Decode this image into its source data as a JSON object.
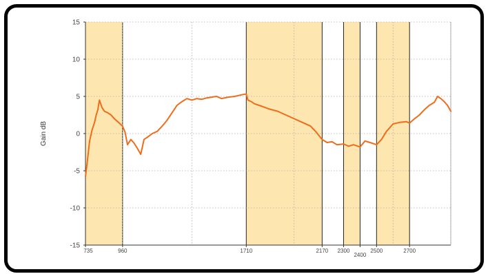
{
  "chart_data": {
    "type": "line",
    "title": "",
    "xlabel": "",
    "ylabel": "Gain dB",
    "xlim": [
      735,
      2950
    ],
    "ylim": [
      -15,
      15
    ],
    "grid": true,
    "legend": "none",
    "y_ticks": [
      -15,
      -10,
      -5,
      0,
      5,
      10,
      15
    ],
    "x_ticks": [
      735,
      960,
      1710,
      2170,
      2300,
      2400,
      2500,
      2700
    ],
    "x_tick_labels": [
      "735",
      "960",
      "1710",
      "2170",
      "2300",
      "2400",
      "2500",
      "2700"
    ],
    "highlight_bands": [
      {
        "from": 735,
        "to": 960
      },
      {
        "from": 1710,
        "to": 2170
      },
      {
        "from": 2300,
        "to": 2400
      },
      {
        "from": 2500,
        "to": 2700
      }
    ],
    "colors": {
      "line": "#ef6c1a",
      "band": "#fde6b0",
      "band_edge": "#222222",
      "grid": "#aaaaaa",
      "frame": "#000000"
    },
    "series": [
      {
        "x": [
          735,
          745,
          760,
          775,
          790,
          800,
          810,
          820,
          835,
          850,
          870,
          890,
          910,
          935,
          960,
          975,
          990,
          1010,
          1030,
          1050,
          1070,
          1090,
          1110,
          1140,
          1170,
          1200,
          1230,
          1260,
          1290,
          1320,
          1350,
          1380,
          1410,
          1440,
          1470,
          1500,
          1530,
          1560,
          1600,
          1640,
          1680,
          1700,
          1710,
          1720,
          1740,
          1760,
          1800,
          1850,
          1900,
          1950,
          2000,
          2050,
          2100,
          2130,
          2170,
          2200,
          2230,
          2260,
          2300,
          2330,
          2360,
          2400,
          2430,
          2460,
          2500,
          2530,
          2560,
          2600,
          2640,
          2680,
          2700,
          2730,
          2760,
          2790,
          2820,
          2850,
          2870,
          2890,
          2910,
          2930,
          2950
        ],
        "y": [
          -5.8,
          -4.0,
          -1.0,
          0.5,
          1.5,
          2.5,
          3.2,
          4.5,
          3.5,
          3.0,
          2.8,
          2.5,
          2.0,
          1.5,
          1.0,
          0.2,
          -1.5,
          -0.8,
          -1.3,
          -2.0,
          -2.8,
          -0.8,
          -0.5,
          0.0,
          0.3,
          1.0,
          1.8,
          2.8,
          3.8,
          4.3,
          4.7,
          4.5,
          4.7,
          4.6,
          4.8,
          4.9,
          5.0,
          4.7,
          4.9,
          5.0,
          5.2,
          5.3,
          5.3,
          4.5,
          4.3,
          4.0,
          3.7,
          3.3,
          3.0,
          2.5,
          2.0,
          1.5,
          1.0,
          0.3,
          -0.8,
          -1.2,
          -1.1,
          -1.5,
          -1.4,
          -1.7,
          -1.5,
          -1.8,
          -1.0,
          -1.2,
          -1.5,
          -0.8,
          0.3,
          1.3,
          1.5,
          1.6,
          1.4,
          2.0,
          2.5,
          3.2,
          3.8,
          4.2,
          5.0,
          4.7,
          4.3,
          3.8,
          3.0
        ]
      }
    ]
  }
}
